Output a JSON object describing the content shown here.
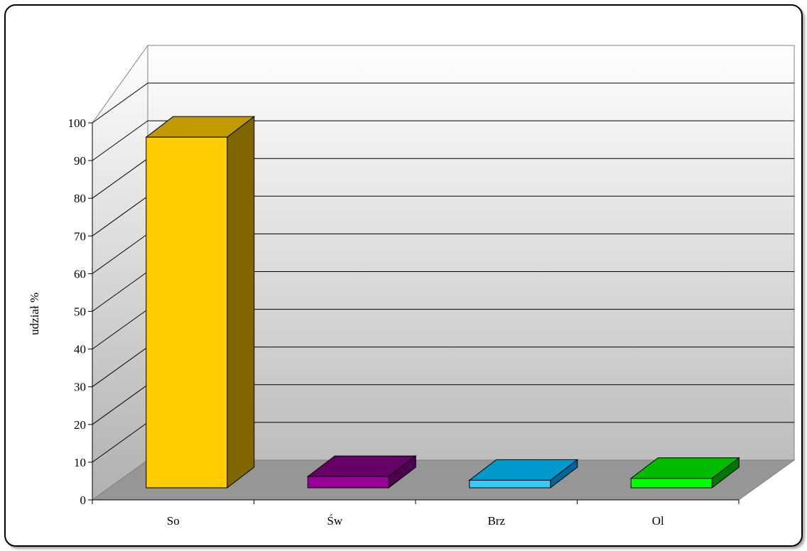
{
  "chart_data": {
    "type": "bar",
    "title": "",
    "xlabel": "",
    "ylabel": "udział %",
    "categories": [
      "So",
      "Św",
      "Brz",
      "Ol"
    ],
    "values": [
      93,
      3,
      2,
      2.5
    ],
    "ylim": [
      0,
      100
    ],
    "yticks": [
      "0",
      "10",
      "20",
      "30",
      "40",
      "50",
      "60",
      "70",
      "80",
      "90",
      "100"
    ],
    "grid": true,
    "style": "3d",
    "colors": {
      "So": {
        "front": "#FFCC00",
        "top": "#C09A00",
        "side": "#806600"
      },
      "Św": {
        "front": "#990099",
        "top": "#660066",
        "side": "#4D004D"
      },
      "Brz": {
        "front": "#33CCFF",
        "top": "#0099CC",
        "side": "#006699"
      },
      "Ol": {
        "front": "#00FF00",
        "top": "#00BB00",
        "side": "#007700"
      }
    },
    "floor_color": "#969696",
    "axis_color": "#808080"
  }
}
